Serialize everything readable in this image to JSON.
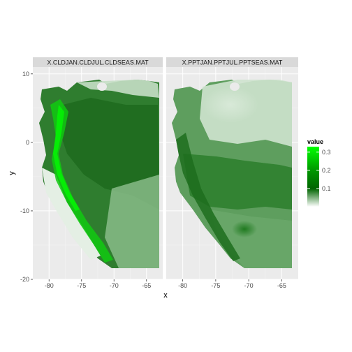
{
  "chart_data": {
    "type": "heatmap",
    "title": "",
    "xlabel": "x",
    "ylabel": "y",
    "xlim": [
      -82.5,
      -62.5
    ],
    "ylim": [
      -20,
      11
    ],
    "x_ticks": [
      -80,
      -75,
      -70,
      -65
    ],
    "y_ticks": [
      -20,
      -10,
      0,
      10
    ],
    "x_tick_labels": [
      "-80",
      "-75",
      "-70",
      "-65"
    ],
    "y_tick_labels": [
      "-20",
      "-10",
      "0",
      "10"
    ],
    "panels": [
      {
        "name": "X.CLDJAN.CLDJUL.CLDSEAS.MAT"
      },
      {
        "name": "X.PPTJAN.PPTJUL.PPTSEAS.MAT"
      }
    ],
    "legend": {
      "title": "value",
      "placement": "right",
      "breaks": [
        0.1,
        0.2,
        0.3
      ],
      "labels": [
        "0.1",
        "0.2",
        "0.3"
      ],
      "range": [
        0,
        0.33
      ],
      "colors": {
        "low": "#ffffff",
        "mid": "#006400",
        "high": "#00ff00"
      }
    },
    "grid": true
  }
}
